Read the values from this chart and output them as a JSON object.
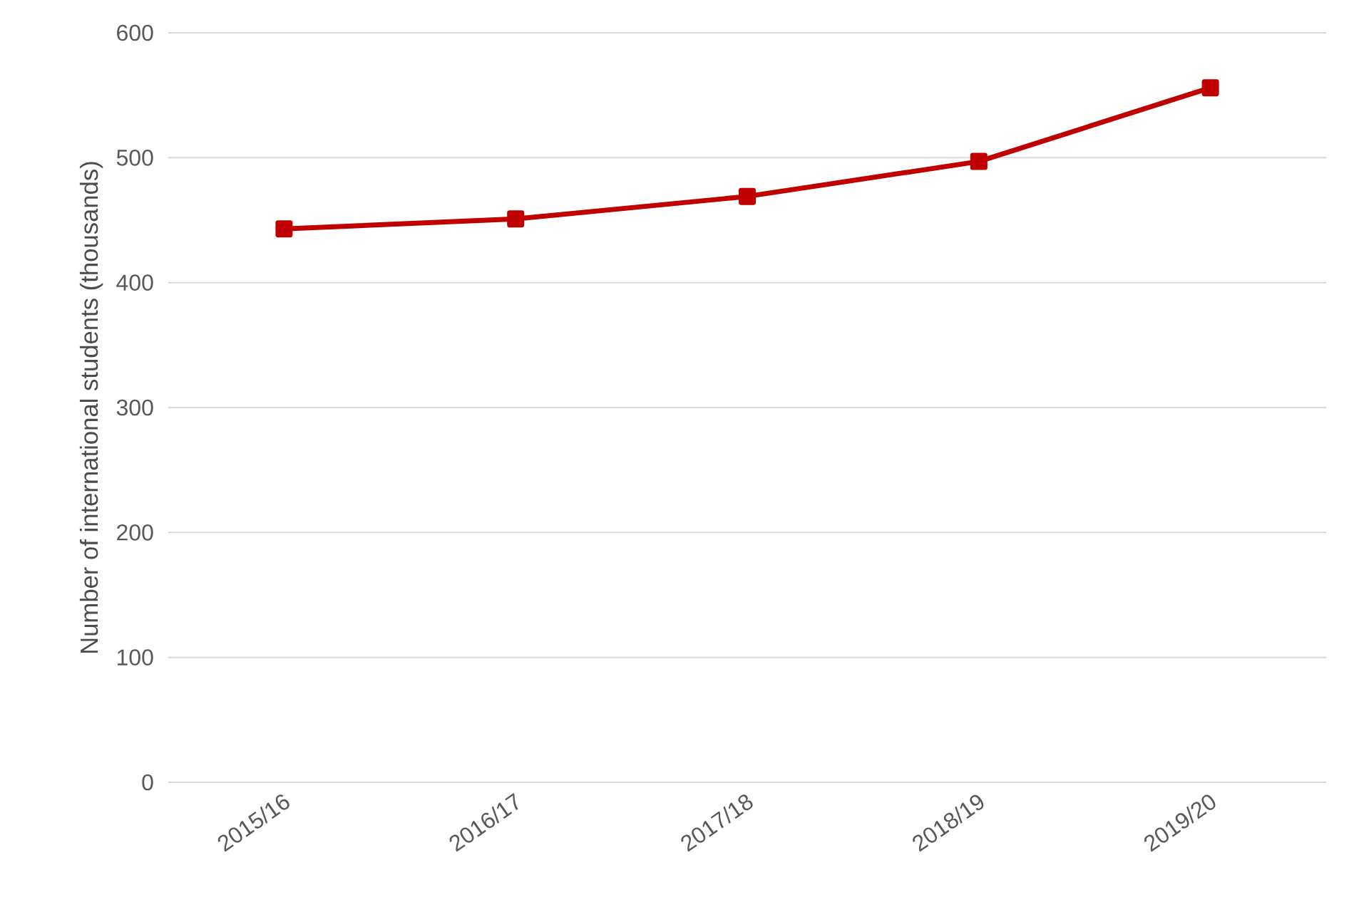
{
  "chart_data": {
    "type": "line",
    "ylabel": "Number of international students (thousands)",
    "categories": [
      "2015/16",
      "2016/17",
      "2017/18",
      "2018/19",
      "2019/20"
    ],
    "series": [
      {
        "color": "#c00000",
        "values": [
          443,
          451,
          469,
          497,
          556
        ]
      }
    ],
    "ylim": [
      0,
      600
    ],
    "yticks": [
      0,
      100,
      200,
      300,
      400,
      500,
      600
    ],
    "grid": "y",
    "marker": "square",
    "line_style": "solid"
  }
}
